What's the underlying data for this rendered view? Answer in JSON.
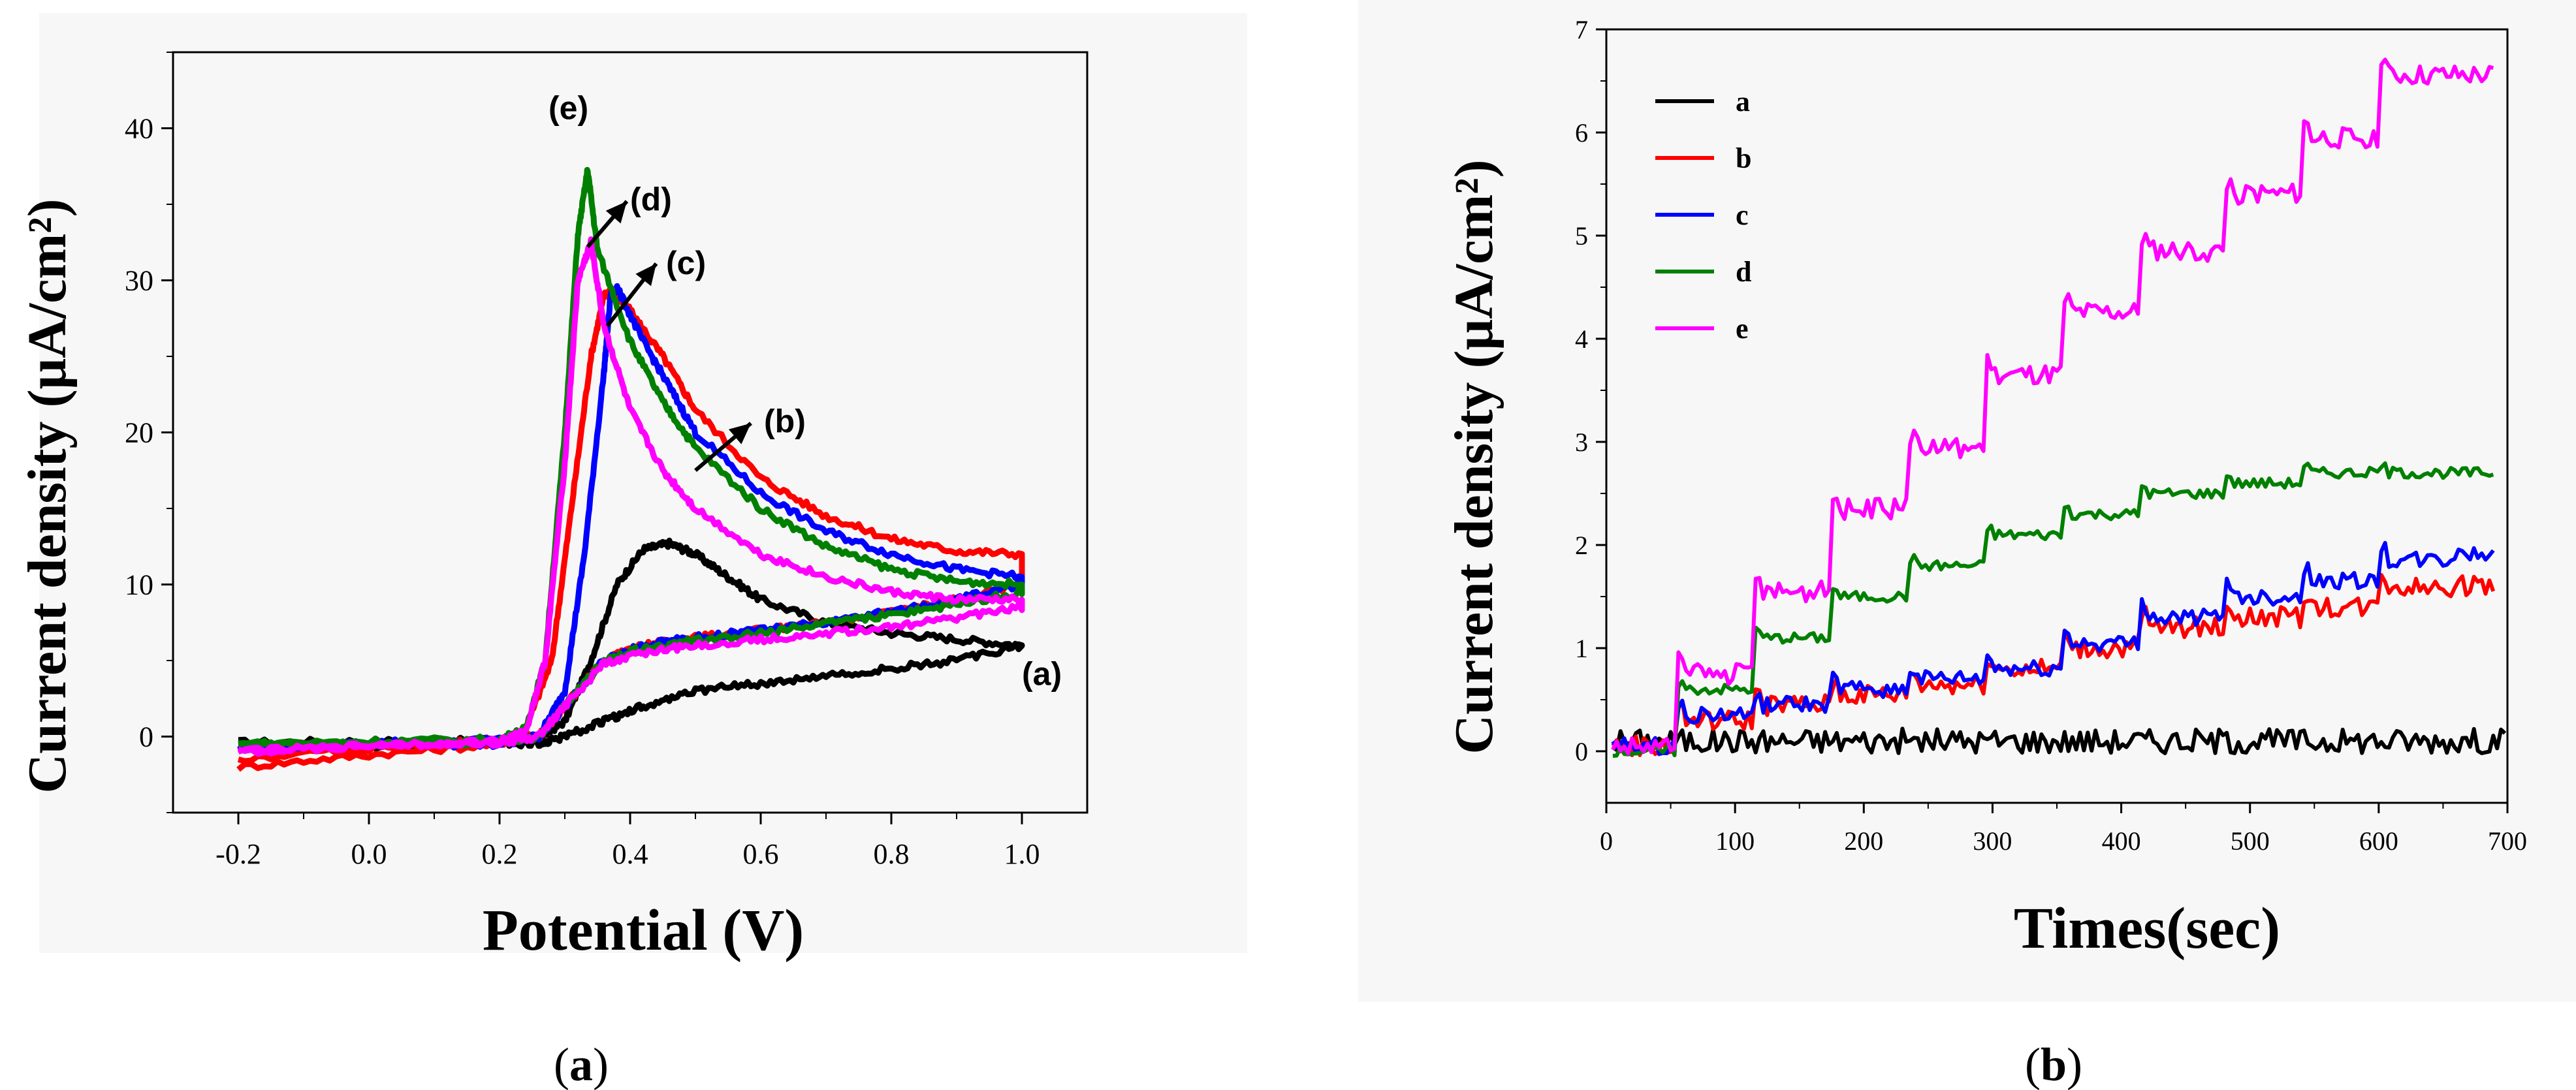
{
  "chart_data": [
    {
      "type": "line",
      "panel": "a",
      "caption": "a",
      "xlabel": "Potential (V)",
      "ylabel": "Current density (μA/cm²)",
      "xlim": [
        -0.3,
        1.1
      ],
      "ylim": [
        -5,
        45
      ],
      "xticks": [
        "-0.2",
        "0.0",
        "0.2",
        "0.4",
        "0.6",
        "0.8",
        "1.0"
      ],
      "yticks": [
        "0",
        "10",
        "20",
        "30",
        "40"
      ],
      "annotations": [
        "(a)",
        "(b)",
        "(c)",
        "(d)",
        "(e)"
      ],
      "series": [
        {
          "name": "a",
          "color": "#000000",
          "forward_x": [
            -0.2,
            0.0,
            0.2,
            0.26,
            0.3,
            0.34,
            0.38,
            0.42,
            0.46,
            0.5,
            0.55,
            0.6,
            0.7,
            0.8,
            0.9,
            1.0
          ],
          "forward_y": [
            -0.4,
            -0.3,
            -0.3,
            -0.1,
            1.0,
            5.0,
            10.0,
            12.3,
            12.7,
            12.0,
            10.5,
            9.0,
            7.5,
            6.8,
            6.4,
            6.0
          ],
          "reverse_x": [
            1.0,
            0.9,
            0.8,
            0.7,
            0.6,
            0.5,
            0.42,
            0.36,
            0.3,
            0.26,
            0.2,
            0.0,
            -0.2
          ],
          "reverse_y": [
            6.0,
            5.0,
            4.5,
            4.0,
            3.5,
            3.0,
            2.0,
            1.0,
            0.0,
            -0.5,
            -0.5,
            -0.6,
            -0.5
          ]
        },
        {
          "name": "b",
          "color": "#ff0000",
          "forward_x": [
            -0.2,
            0.0,
            0.2,
            0.24,
            0.28,
            0.31,
            0.34,
            0.36,
            0.37,
            0.4,
            0.45,
            0.5,
            0.6,
            0.7,
            0.8,
            0.9,
            1.0
          ],
          "forward_y": [
            -2.0,
            -1.2,
            -0.5,
            0.5,
            5.0,
            15.0,
            25.0,
            29.0,
            29.3,
            28.0,
            25.0,
            21.5,
            17.0,
            14.5,
            13.0,
            12.2,
            12.0
          ],
          "reverse_x": [
            1.0,
            0.9,
            0.8,
            0.7,
            0.6,
            0.5,
            0.42,
            0.36,
            0.3,
            0.26,
            0.2,
            0.0,
            -0.2
          ],
          "reverse_y": [
            10.0,
            9.0,
            8.2,
            7.5,
            7.0,
            6.5,
            6.0,
            5.0,
            2.0,
            0.0,
            -0.2,
            -0.8,
            -1.5
          ]
        },
        {
          "name": "c",
          "color": "#0000ff",
          "forward_x": [
            -0.2,
            0.0,
            0.2,
            0.26,
            0.3,
            0.33,
            0.36,
            0.37,
            0.38,
            0.42,
            0.46,
            0.5,
            0.6,
            0.7,
            0.8,
            0.9,
            1.0
          ],
          "forward_y": [
            -0.8,
            -0.4,
            -0.2,
            0.0,
            3.0,
            12.0,
            24.0,
            29.0,
            29.5,
            26.0,
            23.0,
            20.0,
            16.0,
            13.5,
            12.0,
            11.0,
            10.5
          ],
          "reverse_x": [
            1.0,
            0.9,
            0.8,
            0.7,
            0.6,
            0.5,
            0.42,
            0.36,
            0.3,
            0.26,
            0.2,
            0.0,
            -0.2
          ],
          "reverse_y": [
            10.0,
            9.0,
            8.2,
            7.5,
            7.0,
            6.5,
            6.0,
            5.0,
            2.0,
            0.0,
            -0.5,
            -0.5,
            -0.6
          ]
        },
        {
          "name": "d",
          "color": "#008000",
          "forward_x": [
            -0.2,
            0.0,
            0.2,
            0.24,
            0.27,
            0.3,
            0.32,
            0.335,
            0.35,
            0.4,
            0.45,
            0.5,
            0.6,
            0.7,
            0.8,
            0.9,
            1.0
          ],
          "forward_y": [
            -0.5,
            -0.3,
            -0.2,
            0.5,
            5.0,
            20.0,
            33.0,
            37.3,
            32.0,
            26.0,
            22.0,
            19.0,
            15.0,
            12.5,
            11.0,
            10.2,
            10.0
          ],
          "reverse_x": [
            1.0,
            0.9,
            0.8,
            0.7,
            0.6,
            0.5,
            0.42,
            0.36,
            0.3,
            0.26,
            0.2,
            0.0,
            -0.2
          ],
          "reverse_y": [
            9.5,
            8.7,
            8.0,
            7.4,
            6.8,
            6.3,
            5.8,
            5.0,
            2.0,
            0.0,
            -0.4,
            -0.4,
            -0.5
          ]
        },
        {
          "name": "e",
          "color": "#ff00ff",
          "forward_x": [
            -0.2,
            0.0,
            0.2,
            0.24,
            0.27,
            0.3,
            0.32,
            0.34,
            0.36,
            0.4,
            0.45,
            0.5,
            0.6,
            0.7,
            0.8,
            0.9,
            1.0
          ],
          "forward_y": [
            -1.0,
            -0.6,
            -0.3,
            0.3,
            5.0,
            18.0,
            30.0,
            32.5,
            27.0,
            21.5,
            17.5,
            15.0,
            12.0,
            10.5,
            9.5,
            9.0,
            9.0
          ],
          "reverse_x": [
            1.0,
            0.9,
            0.8,
            0.7,
            0.6,
            0.5,
            0.42,
            0.36,
            0.3,
            0.26,
            0.2,
            0.0,
            -0.2
          ],
          "reverse_y": [
            8.5,
            7.8,
            7.2,
            6.8,
            6.4,
            6.0,
            5.5,
            4.8,
            2.0,
            0.0,
            -0.4,
            -0.6,
            -1.0
          ]
        }
      ]
    },
    {
      "type": "line",
      "panel": "b",
      "caption": "b",
      "xlabel": "Times(sec)",
      "ylabel": "Current density (μA/cm²)",
      "xlim": [
        0,
        700
      ],
      "ylim": [
        -0.5,
        7
      ],
      "xticks": [
        "0",
        "100",
        "200",
        "300",
        "400",
        "500",
        "600",
        "700"
      ],
      "yticks": [
        "0",
        "1",
        "2",
        "3",
        "4",
        "5",
        "6",
        "7"
      ],
      "legend": [
        "a",
        "b",
        "c",
        "d",
        "e"
      ],
      "series": [
        {
          "name": "a",
          "color": "#000000",
          "x": [
            5,
            700
          ],
          "base_values": [
            0.1
          ],
          "step_times": [],
          "noise": 0.12
        },
        {
          "name": "b",
          "color": "#ff0000",
          "x": [
            5,
            690
          ],
          "base_values": [
            0.05,
            0.3,
            0.45,
            0.55,
            0.65,
            0.8,
            1.0,
            1.2,
            1.3,
            1.4,
            1.6,
            1.6
          ],
          "step_times": [
            55,
            115,
            175,
            235,
            295,
            355,
            415,
            480,
            540,
            600,
            660
          ],
          "noise": 0.1
        },
        {
          "name": "c",
          "color": "#0000ff",
          "x": [
            5,
            690
          ],
          "base_values": [
            0.05,
            0.35,
            0.45,
            0.6,
            0.7,
            0.8,
            1.05,
            1.3,
            1.5,
            1.65,
            1.85,
            1.9
          ],
          "step_times": [
            55,
            115,
            175,
            235,
            295,
            355,
            415,
            480,
            540,
            600,
            660
          ],
          "noise": 0.08
        },
        {
          "name": "d",
          "color": "#008000",
          "x": [
            5,
            690
          ],
          "base_values": [
            0.0,
            0.6,
            1.1,
            1.5,
            1.8,
            2.1,
            2.3,
            2.5,
            2.6,
            2.7,
            2.7
          ],
          "step_times": [
            55,
            115,
            175,
            235,
            295,
            355,
            415,
            480,
            540,
            600
          ],
          "noise": 0.05
        },
        {
          "name": "e",
          "color": "#ff00ff",
          "x": [
            5,
            690
          ],
          "base_values": [
            0.05,
            0.75,
            1.55,
            2.35,
            2.95,
            3.65,
            4.25,
            4.85,
            5.4,
            5.95,
            6.55
          ],
          "step_times": [
            55,
            115,
            175,
            235,
            295,
            355,
            415,
            480,
            540,
            600
          ],
          "noise": 0.1
        }
      ]
    }
  ]
}
